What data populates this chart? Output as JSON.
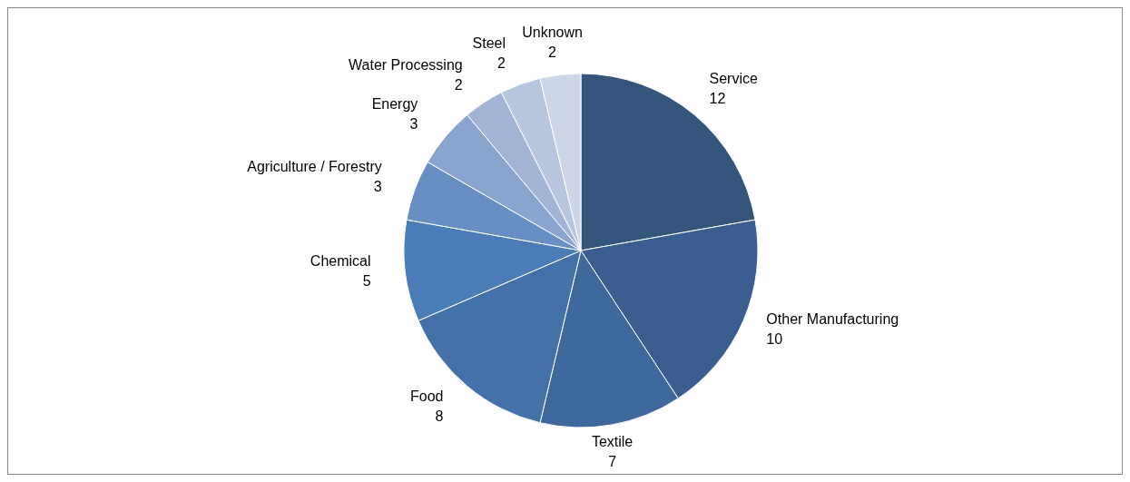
{
  "chart_data": {
    "type": "pie",
    "categories": [
      "Service",
      "Other Manufacturing",
      "Textile",
      "Food",
      "Chemical",
      "Agriculture / Forestry",
      "Energy",
      "Water Processing",
      "Steel",
      "Unknown"
    ],
    "values": [
      12,
      10,
      7,
      8,
      5,
      3,
      3,
      2,
      2,
      2
    ],
    "colors": [
      "#34567d",
      "#3a5e8f",
      "#3f689c",
      "#4472a8",
      "#4a7cb8",
      "#678fc4",
      "#89a5cf",
      "#a3b5d7",
      "#b8c5df",
      "#cdd5e8"
    ],
    "data_labels": true,
    "legend": false
  }
}
